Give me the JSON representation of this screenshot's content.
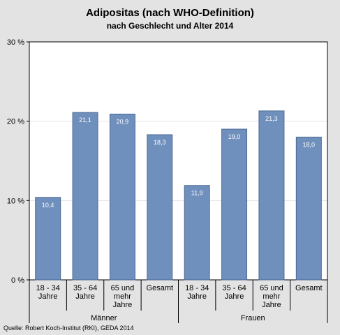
{
  "chart_data": {
    "type": "bar",
    "title": "Adipositas (nach WHO-Definition)",
    "subtitle": "nach Geschlecht und Alter  2014",
    "categories": [
      [
        "18 - 34",
        "Jahre"
      ],
      [
        "35 - 64",
        "Jahre"
      ],
      [
        "65 und",
        "mehr",
        "Jahre"
      ],
      [
        "Gesamt"
      ],
      [
        "18 - 34",
        "Jahre"
      ],
      [
        "35 - 64",
        "Jahre"
      ],
      [
        "65 und",
        "mehr",
        "Jahre"
      ],
      [
        "Gesamt"
      ]
    ],
    "groups": [
      {
        "label": "Männer",
        "start": 0,
        "end": 3
      },
      {
        "label": "Frauen",
        "start": 4,
        "end": 7
      }
    ],
    "values": [
      10.4,
      21.1,
      20.9,
      18.3,
      11.9,
      19.0,
      21.3,
      18.0
    ],
    "value_labels": [
      "10,4",
      "21,1",
      "20,9",
      "18,3",
      "11,9",
      "19,0",
      "21,3",
      "18,0"
    ],
    "yticks": [
      0,
      10,
      20,
      30
    ],
    "ytick_labels": [
      "0 %",
      "10 %",
      "20 %",
      "30 %"
    ],
    "ylim": [
      0,
      30
    ],
    "grid": true,
    "bar_color": "#6f8fbd",
    "source": "Quelle:  Robert Koch-Institut (RKI), GEDA 2014"
  }
}
